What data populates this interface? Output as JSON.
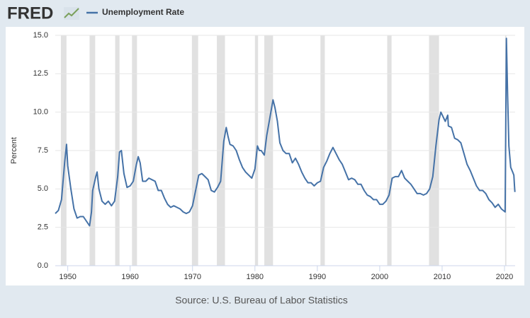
{
  "chart_data": {
    "type": "line",
    "brand": "FRED",
    "title": "Unemployment Rate",
    "y_label": "Percent",
    "source": "Source: U.S. Bureau of Labor Statistics",
    "x": [
      1948.0,
      1948.5,
      1949.0,
      1949.5,
      1949.8,
      1950.0,
      1950.5,
      1951.0,
      1951.5,
      1952.0,
      1952.5,
      1953.0,
      1953.5,
      1953.8,
      1954.0,
      1954.5,
      1954.7,
      1955.0,
      1955.5,
      1956.0,
      1956.5,
      1957.0,
      1957.5,
      1958.0,
      1958.3,
      1958.6,
      1959.0,
      1959.5,
      1960.0,
      1960.5,
      1961.0,
      1961.3,
      1961.6,
      1962.0,
      1962.5,
      1963.0,
      1963.5,
      1964.0,
      1964.5,
      1965.0,
      1965.5,
      1966.0,
      1966.5,
      1967.0,
      1967.5,
      1968.0,
      1968.5,
      1969.0,
      1969.5,
      1970.0,
      1970.5,
      1971.0,
      1971.5,
      1972.0,
      1972.5,
      1973.0,
      1973.5,
      1974.0,
      1974.5,
      1975.0,
      1975.4,
      1975.7,
      1976.0,
      1976.5,
      1977.0,
      1977.5,
      1978.0,
      1978.5,
      1979.0,
      1979.5,
      1980.0,
      1980.4,
      1980.7,
      1981.0,
      1981.5,
      1981.9,
      1982.3,
      1982.9,
      1983.2,
      1983.6,
      1984.0,
      1984.5,
      1985.0,
      1985.5,
      1986.0,
      1986.5,
      1987.0,
      1987.5,
      1988.0,
      1988.5,
      1989.0,
      1989.5,
      1990.0,
      1990.5,
      1991.0,
      1991.5,
      1992.0,
      1992.5,
      1993.0,
      1993.5,
      1994.0,
      1994.5,
      1995.0,
      1995.5,
      1996.0,
      1996.5,
      1997.0,
      1997.5,
      1998.0,
      1998.5,
      1999.0,
      1999.5,
      2000.0,
      2000.5,
      2001.0,
      2001.5,
      2002.0,
      2002.5,
      2003.0,
      2003.5,
      2004.0,
      2004.5,
      2005.0,
      2005.5,
      2006.0,
      2006.5,
      2007.0,
      2007.5,
      2008.0,
      2008.5,
      2009.0,
      2009.5,
      2009.8,
      2010.5,
      2010.9,
      2011.0,
      2011.5,
      2012.0,
      2012.5,
      2013.0,
      2013.5,
      2014.0,
      2014.5,
      2015.0,
      2015.5,
      2016.0,
      2016.5,
      2017.0,
      2017.5,
      2018.0,
      2018.5,
      2019.0,
      2019.5,
      2020.1,
      2020.3,
      2020.5,
      2020.7,
      2021.0,
      2021.3,
      2021.5,
      2021.6,
      2021.67
    ],
    "series": [
      {
        "name": "Unemployment Rate",
        "color": "#4572a7",
        "values": [
          3.4,
          3.6,
          4.3,
          6.7,
          7.9,
          6.5,
          5.0,
          3.7,
          3.1,
          3.2,
          3.2,
          2.9,
          2.6,
          3.5,
          4.9,
          5.8,
          6.1,
          5.0,
          4.2,
          4.0,
          4.2,
          3.9,
          4.2,
          5.8,
          7.4,
          7.5,
          6.0,
          5.1,
          5.2,
          5.5,
          6.6,
          7.1,
          6.7,
          5.5,
          5.5,
          5.7,
          5.6,
          5.5,
          4.9,
          4.9,
          4.4,
          4.0,
          3.8,
          3.9,
          3.8,
          3.7,
          3.5,
          3.4,
          3.5,
          3.9,
          4.9,
          5.9,
          6.0,
          5.8,
          5.6,
          4.9,
          4.8,
          5.1,
          5.5,
          8.1,
          9.0,
          8.4,
          7.9,
          7.8,
          7.5,
          6.9,
          6.4,
          6.1,
          5.9,
          5.7,
          6.3,
          7.8,
          7.5,
          7.5,
          7.2,
          8.5,
          9.4,
          10.8,
          10.3,
          9.4,
          8.0,
          7.5,
          7.3,
          7.3,
          6.7,
          7.0,
          6.6,
          6.1,
          5.7,
          5.4,
          5.4,
          5.2,
          5.4,
          5.5,
          6.4,
          6.8,
          7.3,
          7.7,
          7.3,
          6.9,
          6.6,
          6.1,
          5.6,
          5.7,
          5.6,
          5.3,
          5.3,
          4.9,
          4.6,
          4.5,
          4.3,
          4.3,
          4.0,
          4.0,
          4.2,
          4.6,
          5.7,
          5.8,
          5.8,
          6.2,
          5.7,
          5.5,
          5.3,
          5.0,
          4.7,
          4.7,
          4.6,
          4.7,
          5.0,
          5.8,
          7.8,
          9.5,
          10.0,
          9.4,
          9.8,
          9.1,
          9.0,
          8.3,
          8.2,
          8.0,
          7.3,
          6.6,
          6.2,
          5.7,
          5.2,
          4.9,
          4.9,
          4.7,
          4.3,
          4.1,
          3.8,
          4.0,
          3.7,
          3.5,
          14.8,
          11.1,
          7.8,
          6.4,
          6.1,
          5.9,
          5.2,
          4.8
        ]
      }
    ],
    "recessions": [
      [
        1948.9,
        1949.8
      ],
      [
        1953.5,
        1954.4
      ],
      [
        1957.6,
        1958.3
      ],
      [
        1960.3,
        1961.1
      ],
      [
        1969.9,
        1970.9
      ],
      [
        1973.9,
        1975.2
      ],
      [
        1980.0,
        1980.5
      ],
      [
        1981.5,
        1982.9
      ],
      [
        1990.5,
        1991.2
      ],
      [
        2001.2,
        2001.9
      ],
      [
        2007.9,
        2009.5
      ],
      [
        2020.1,
        2020.3
      ]
    ],
    "xlim": [
      1948.0,
      2021.7
    ],
    "xticks": [
      1950,
      1960,
      1970,
      1980,
      1990,
      2000,
      2010,
      2020
    ],
    "ylim": [
      0,
      15
    ],
    "yticks": [
      {
        "value": 0,
        "label": "0.0"
      },
      {
        "value": 2.5,
        "label": "2.5"
      },
      {
        "value": 5,
        "label": "5.0"
      },
      {
        "value": 7.5,
        "label": "7.5"
      },
      {
        "value": 10,
        "label": "10.0"
      },
      {
        "value": 12.5,
        "label": "12.5"
      },
      {
        "value": 15,
        "label": "15.0"
      }
    ],
    "grid": true,
    "recession_color": "#e1e1e1"
  }
}
